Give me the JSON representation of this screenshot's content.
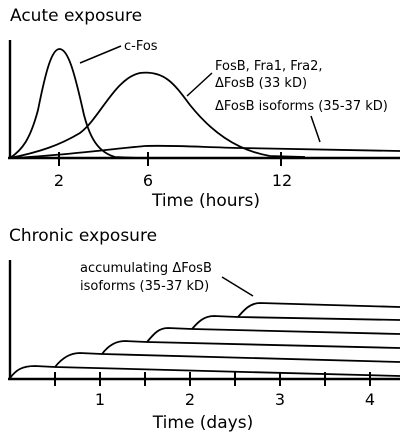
{
  "acute": {
    "title": "Acute exposure",
    "labels": {
      "cfos": "c-Fos",
      "fosb_line1": "FosB, Fra1, Fra2,",
      "fosb_line2": "ΔFosB (33 kD)",
      "dfosb_iso": "ΔFosB isoforms (35-37 kD)"
    },
    "x_ticks": [
      "2",
      "6",
      "12"
    ],
    "x_label": "Time (hours)"
  },
  "chronic": {
    "title": "Chronic exposure",
    "labels": {
      "accum_line1": "accumulating ΔFosB",
      "accum_line2": "isoforms (35-37 kD)"
    },
    "x_ticks": [
      "1",
      "2",
      "3",
      "4"
    ],
    "x_label": "Time (days)"
  }
}
